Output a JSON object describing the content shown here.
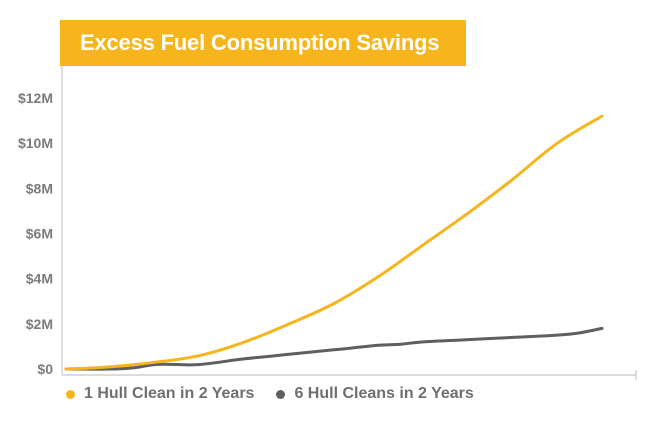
{
  "colors": {
    "accent": "#f6b51c",
    "series_gray": "#5f5f5f",
    "axis": "#c8c8c8",
    "text": "#7b7b7b",
    "background": "#ffffff"
  },
  "chart_data": {
    "type": "line",
    "title": "Excess Fuel Consumption Savings",
    "xlabel": "",
    "ylabel": "",
    "xlim": [
      0,
      24
    ],
    "ylim": [
      0,
      13
    ],
    "y_ticks": [
      0,
      2,
      4,
      6,
      8,
      10,
      12
    ],
    "y_tick_labels": [
      "$0",
      "$2M",
      "$4M",
      "$6M",
      "$8M",
      "$10M",
      "$12M"
    ],
    "grid": false,
    "legend_position": "bottom",
    "series": [
      {
        "name": "1 Hull Clean in 2 Years",
        "color": "#f6b51c",
        "x": [
          0,
          2,
          4,
          6,
          8,
          10,
          12,
          14,
          16,
          18,
          20,
          22,
          24
        ],
        "y": [
          0,
          0.1,
          0.3,
          0.6,
          1.2,
          2.0,
          2.9,
          4.1,
          5.5,
          6.9,
          8.4,
          10.0,
          11.2
        ]
      },
      {
        "name": "6 Hull Cleans in 2 Years",
        "color": "#5f5f5f",
        "x": [
          0,
          2,
          3,
          4,
          5,
          6,
          8,
          10,
          12,
          14,
          15,
          16,
          18,
          20,
          22,
          23,
          24
        ],
        "y": [
          0,
          0,
          0.05,
          0.2,
          0.2,
          0.2,
          0.45,
          0.65,
          0.85,
          1.05,
          1.1,
          1.2,
          1.3,
          1.4,
          1.5,
          1.6,
          1.8
        ]
      }
    ]
  }
}
